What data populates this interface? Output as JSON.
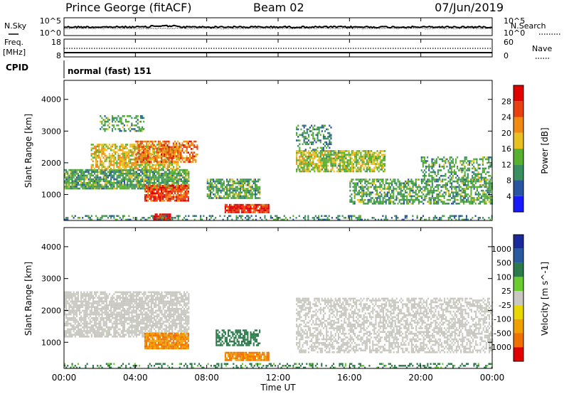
{
  "header": {
    "station": "Prince George (fitACF)",
    "beam": "Beam 02",
    "date": "07/Jun/2019"
  },
  "side_labels": {
    "nsky": "N.Sky",
    "nsearch": "N.Search",
    "freq_line1": "Freq.",
    "freq_line2": "[MHz]",
    "nave": "Nave",
    "cpid": "CPID"
  },
  "noise_panel": {
    "left_ticks": [
      "10^5",
      "10^0"
    ],
    "right_ticks": [
      "10^5",
      "10^0"
    ]
  },
  "freq_panel": {
    "left_ticks": [
      "18",
      "8"
    ],
    "right_ticks": [
      "60",
      "0"
    ]
  },
  "cpid_panel": {
    "label": "normal (fast) 151"
  },
  "colors": {
    "power_scale": [
      "#1a1aff",
      "#2a55a0",
      "#3a8f60",
      "#58b030",
      "#e8c020",
      "#f08a10",
      "#e84010",
      "#e00000"
    ],
    "velocity_scale": [
      "#1a2a9a",
      "#2a5aa0",
      "#2a7a4a",
      "#6acc30",
      "#c8c8c0",
      "#e8d800",
      "#f0a000",
      "#f07000",
      "#e00000"
    ],
    "ground_scatter": "#c8c8c0"
  },
  "chart_data": [
    {
      "type": "heatmap",
      "title": "Power",
      "xlabel": "",
      "ylabel": "Slant Range [km]",
      "x_ticks": [
        "00:00",
        "04:00",
        "08:00",
        "12:00",
        "16:00",
        "20:00",
        "00:00"
      ],
      "xlim_hours": [
        0,
        24
      ],
      "y_ticks": [
        1000,
        2000,
        3000,
        4000
      ],
      "ylim": [
        180,
        4600
      ],
      "colorbar": {
        "label": "Power [dB]",
        "ticks": [
          4,
          8,
          12,
          16,
          20,
          24,
          28
        ]
      },
      "regions": [
        {
          "t0": 0.0,
          "t1": 7.0,
          "r0": 1200,
          "r1": 1800,
          "level": 12,
          "density": 0.85
        },
        {
          "t0": 1.5,
          "t1": 6.5,
          "r0": 1800,
          "r1": 2600,
          "level": 18,
          "density": 0.7
        },
        {
          "t0": 4.0,
          "t1": 7.5,
          "r0": 2000,
          "r1": 2700,
          "level": 24,
          "density": 0.6
        },
        {
          "t0": 4.5,
          "t1": 7.0,
          "r0": 800,
          "r1": 1300,
          "level": 26,
          "density": 0.9
        },
        {
          "t0": 8.0,
          "t1": 11.0,
          "r0": 900,
          "r1": 1500,
          "level": 12,
          "density": 0.7
        },
        {
          "t0": 9.0,
          "t1": 11.5,
          "r0": 450,
          "r1": 700,
          "level": 28,
          "density": 0.9
        },
        {
          "t0": 5.0,
          "t1": 6.0,
          "r0": 200,
          "r1": 400,
          "level": 30,
          "density": 0.95
        },
        {
          "t0": 13.0,
          "t1": 18.0,
          "r0": 1700,
          "r1": 2400,
          "level": 16,
          "density": 0.75
        },
        {
          "t0": 13.0,
          "t1": 15.0,
          "r0": 2400,
          "r1": 3200,
          "level": 10,
          "density": 0.45
        },
        {
          "t0": 16.0,
          "t1": 24.0,
          "r0": 700,
          "r1": 1500,
          "level": 12,
          "density": 0.6
        },
        {
          "t0": 20.0,
          "t1": 24.0,
          "r0": 1400,
          "r1": 2200,
          "level": 12,
          "density": 0.45
        },
        {
          "t0": 2.0,
          "t1": 4.5,
          "r0": 3000,
          "r1": 3500,
          "level": 12,
          "density": 0.4
        },
        {
          "t0": 0.0,
          "t1": 24.0,
          "r0": 180,
          "r1": 350,
          "level": 10,
          "density": 0.35
        }
      ]
    },
    {
      "type": "heatmap",
      "title": "Velocity",
      "xlabel": "Time UT",
      "ylabel": "Slant Range [km]",
      "x_ticks": [
        "00:00",
        "04:00",
        "08:00",
        "12:00",
        "16:00",
        "20:00",
        "00:00"
      ],
      "xlim_hours": [
        0,
        24
      ],
      "y_ticks": [
        1000,
        2000,
        3000,
        4000
      ],
      "ylim": [
        180,
        4600
      ],
      "colorbar": {
        "label": "Velocity [m s^-1]",
        "ticks": [
          "1000",
          "500",
          "100",
          "25",
          "-25",
          "-100",
          "-500",
          "-1000"
        ]
      },
      "regions": [
        {
          "t0": 0.0,
          "t1": 7.0,
          "r0": 1200,
          "r1": 2600,
          "vel": 0,
          "density": 0.75
        },
        {
          "t0": 4.5,
          "t1": 7.0,
          "r0": 800,
          "r1": 1300,
          "vel": -300,
          "density": 0.9
        },
        {
          "t0": 8.5,
          "t1": 11.0,
          "r0": 900,
          "r1": 1400,
          "vel": 150,
          "density": 0.6
        },
        {
          "t0": 9.0,
          "t1": 11.5,
          "r0": 450,
          "r1": 700,
          "vel": -300,
          "density": 0.9
        },
        {
          "t0": 13.0,
          "t1": 24.0,
          "r0": 700,
          "r1": 2400,
          "vel": 0,
          "density": 0.55
        },
        {
          "t0": 0.0,
          "t1": 24.0,
          "r0": 180,
          "r1": 350,
          "vel": 120,
          "density": 0.3
        }
      ]
    }
  ]
}
